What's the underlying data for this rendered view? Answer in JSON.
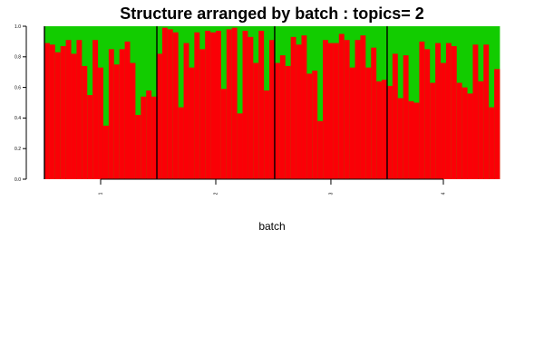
{
  "chart_data": {
    "type": "bar",
    "stacked": true,
    "normalized": true,
    "title": "Structure arranged by batch : topics= 2",
    "xlabel": "batch",
    "ylabel": "",
    "ylim": [
      0,
      1
    ],
    "yticks": [
      "0.0",
      "0.2",
      "0.4",
      "0.6",
      "0.8",
      "1.0"
    ],
    "groups": [
      {
        "label": "1",
        "values": [
          0.89,
          0.88,
          0.83,
          0.87,
          0.91,
          0.82,
          0.91,
          0.74,
          0.55,
          0.91,
          0.73,
          0.35,
          0.85,
          0.75,
          0.85,
          0.9,
          0.76,
          0.42,
          0.54,
          0.58,
          0.54
        ]
      },
      {
        "label": "2",
        "values": [
          0.82,
          0.99,
          0.98,
          0.96,
          0.47,
          0.89,
          0.73,
          0.96,
          0.85,
          0.97,
          0.96,
          0.97,
          0.59,
          0.98,
          0.99,
          0.43,
          0.97,
          0.93,
          0.76,
          0.97,
          0.58,
          0.91
        ]
      },
      {
        "label": "3",
        "values": [
          0.76,
          0.81,
          0.74,
          0.93,
          0.88,
          0.94,
          0.69,
          0.71,
          0.38,
          0.91,
          0.89,
          0.89,
          0.95,
          0.91,
          0.73,
          0.91,
          0.94,
          0.73,
          0.86,
          0.64,
          0.65
        ]
      },
      {
        "label": "4",
        "values": [
          0.61,
          0.82,
          0.53,
          0.81,
          0.51,
          0.5,
          0.9,
          0.85,
          0.63,
          0.89,
          0.76,
          0.89,
          0.87,
          0.63,
          0.6,
          0.56,
          0.88,
          0.64,
          0.88,
          0.47,
          0.72
        ]
      }
    ],
    "series": [
      {
        "color": "#FA0006"
      },
      {
        "color": "#12CC00"
      }
    ],
    "grid": false,
    "legend": "none"
  }
}
